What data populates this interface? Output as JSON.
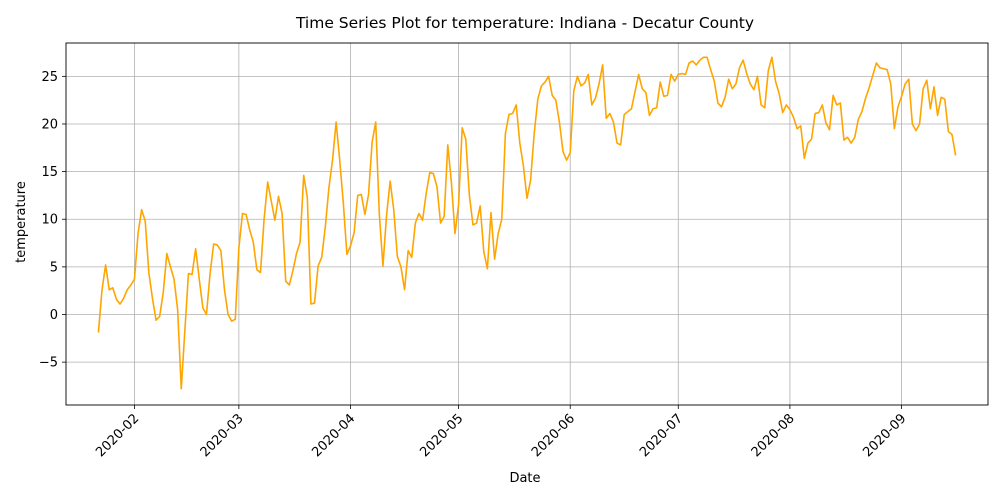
{
  "chart_data": {
    "type": "line",
    "title": "Time Series Plot for temperature: Indiana - Decatur County",
    "xlabel": "Date",
    "ylabel": "temperature",
    "grid": true,
    "line_color": "#ffa500",
    "ylim": [
      -9.5,
      28.5
    ],
    "yticks": [
      -5,
      0,
      5,
      10,
      15,
      20,
      25
    ],
    "xlim": [
      "2020-01-13",
      "2020-09-25"
    ],
    "xticks": [
      {
        "date": "2020-02-01",
        "label": "2020-02"
      },
      {
        "date": "2020-03-01",
        "label": "2020-03"
      },
      {
        "date": "2020-04-01",
        "label": "2020-04"
      },
      {
        "date": "2020-05-01",
        "label": "2020-05"
      },
      {
        "date": "2020-06-01",
        "label": "2020-06"
      },
      {
        "date": "2020-07-01",
        "label": "2020-07"
      },
      {
        "date": "2020-08-01",
        "label": "2020-08"
      },
      {
        "date": "2020-09-01",
        "label": "2020-09"
      }
    ],
    "series": [
      {
        "x_start": "2020-01-22",
        "values": [
          -1.9,
          2.6,
          5.2,
          2.6,
          2.8,
          1.6,
          1.1,
          1.7,
          2.6,
          3.1,
          3.7,
          8.5,
          11.0,
          9.8,
          4.4,
          1.7,
          -0.6,
          -0.2,
          2.3,
          6.4,
          5.0,
          3.7,
          0.5,
          -7.8,
          -1.7,
          4.3,
          4.2,
          6.9,
          3.7,
          0.7,
          0.0,
          4.3,
          7.4,
          7.3,
          6.7,
          2.6,
          0.0,
          -0.7,
          -0.5,
          7.0,
          10.6,
          10.5,
          8.9,
          7.6,
          4.7,
          4.4,
          10.0,
          13.9,
          11.9,
          9.9,
          12.4,
          10.6,
          3.5,
          3.1,
          4.6,
          6.4,
          7.6,
          14.6,
          12.3,
          1.1,
          1.2,
          5.1,
          6.0,
          9.2,
          13.3,
          16.2,
          20.2,
          16.2,
          11.7,
          6.3,
          7.2,
          8.6,
          12.5,
          12.6,
          10.5,
          12.6,
          18.1,
          20.2,
          10.5,
          5.1,
          10.4,
          14.0,
          11.0,
          6.1,
          5.0,
          2.6,
          6.7,
          6.0,
          9.6,
          10.6,
          9.9,
          12.7,
          14.9,
          14.8,
          13.4,
          9.6,
          10.3,
          17.8,
          13.9,
          8.5,
          11.5,
          19.6,
          18.4,
          12.5,
          9.4,
          9.6,
          11.4,
          6.6,
          4.8,
          10.7,
          5.8,
          8.5,
          10.0,
          19.0,
          21.0,
          21.1,
          22.0,
          18.0,
          15.6,
          12.2,
          14.1,
          19.0,
          22.6,
          24.0,
          24.4,
          25.0,
          23.0,
          22.5,
          20.2,
          17.1,
          16.2,
          17.0,
          23.5,
          25.0,
          24.0,
          24.3,
          25.2,
          22.0,
          22.7,
          24.2,
          26.2,
          20.6,
          21.1,
          20.2,
          18.0,
          17.8,
          21.0,
          21.3,
          21.6,
          23.4,
          25.2,
          23.7,
          23.3,
          20.9,
          21.6,
          21.7,
          24.4,
          22.9,
          23.0,
          25.2,
          24.5,
          25.2,
          25.3,
          25.2,
          26.4,
          26.6,
          26.2,
          26.7,
          27.0,
          27.0,
          25.7,
          24.5,
          22.2,
          21.8,
          22.8,
          24.7,
          23.7,
          24.2,
          25.9,
          26.7,
          25.3,
          24.2,
          23.6,
          25.0,
          22.0,
          21.7,
          25.6,
          27.0,
          24.5,
          23.2,
          21.2,
          22.0,
          21.5,
          20.7,
          19.5,
          19.8,
          16.4,
          18.0,
          18.4,
          21.1,
          21.2,
          22.0,
          20.1,
          19.4,
          23.0,
          22.0,
          22.2,
          18.3,
          18.6,
          18.0,
          18.6,
          20.5,
          21.3,
          22.7,
          23.8,
          25.1,
          26.4,
          25.9,
          25.8,
          25.7,
          24.2,
          19.5,
          21.8,
          22.9,
          24.2,
          24.7,
          20.0,
          19.3,
          20.0,
          23.7,
          24.6,
          21.6,
          23.9,
          20.9,
          22.8,
          22.6,
          19.2,
          18.9,
          16.7
        ]
      }
    ]
  }
}
